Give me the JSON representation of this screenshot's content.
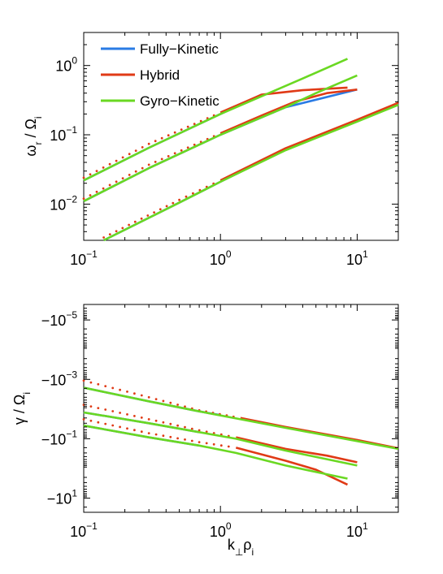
{
  "colors": {
    "fully_kinetic": "#2a7be4",
    "hybrid": "#e03a16",
    "gyro_kinetic": "#6ad822",
    "axes": "#000000",
    "background": "#ffffff"
  },
  "chart_data": [
    {
      "type": "line",
      "xscale": "log",
      "yscale": "log",
      "xlim": [
        0.1,
        20
      ],
      "ylim": [
        0.003,
        3
      ],
      "xticks": [
        0.1,
        1,
        10
      ],
      "xtick_labels": [
        {
          "base": "10",
          "exp": "−1"
        },
        {
          "base": "10",
          "exp": "0"
        },
        {
          "base": "10",
          "exp": "1"
        }
      ],
      "yticks": [
        0.01,
        0.1,
        1
      ],
      "ytick_labels": [
        {
          "base": "10",
          "exp": "−2"
        },
        {
          "base": "10",
          "exp": "−1"
        },
        {
          "base": "10",
          "exp": "0"
        }
      ],
      "ylabel": {
        "main": "ω",
        "sub": "r",
        "sep": " / ",
        "denom": "Ω",
        "denom_sub": "i"
      },
      "grid": false,
      "legend": {
        "placement": "top-left",
        "entries": [
          "Fully−Kinetic",
          "Hybrid",
          "Gyro−Kinetic"
        ]
      },
      "series": [
        {
          "name": "Fully−Kinetic",
          "style": "solid",
          "x": [
            0.1,
            0.3,
            1,
            2
          ],
          "y": [
            0.022,
            0.065,
            0.2,
            0.38
          ]
        },
        {
          "name": "Fully−Kinetic",
          "style": "solid",
          "x": [
            0.1,
            0.3,
            1,
            3,
            10
          ],
          "y": [
            0.011,
            0.033,
            0.1,
            0.25,
            0.45
          ]
        },
        {
          "name": "Fully−Kinetic",
          "style": "solid",
          "x": [
            0.14,
            0.5,
            1,
            3,
            10,
            20
          ],
          "y": [
            0.003,
            0.0105,
            0.021,
            0.062,
            0.16,
            0.28
          ]
        },
        {
          "name": "Hybrid",
          "style": "dotted",
          "x": [
            0.1,
            0.3,
            1
          ],
          "y": [
            0.024,
            0.074,
            0.21
          ]
        },
        {
          "name": "Hybrid",
          "style": "solid",
          "x": [
            1,
            2,
            4,
            8.5
          ],
          "y": [
            0.21,
            0.38,
            0.44,
            0.48
          ]
        },
        {
          "name": "Hybrid",
          "style": "dotted",
          "x": [
            0.1,
            0.3,
            1
          ],
          "y": [
            0.012,
            0.037,
            0.105
          ]
        },
        {
          "name": "Hybrid",
          "style": "solid",
          "x": [
            1,
            2,
            3.5,
            6,
            10
          ],
          "y": [
            0.105,
            0.19,
            0.3,
            0.4,
            0.45
          ]
        },
        {
          "name": "Hybrid",
          "style": "dotted",
          "x": [
            0.14,
            0.5,
            1
          ],
          "y": [
            0.0033,
            0.0115,
            0.022
          ]
        },
        {
          "name": "Hybrid",
          "style": "solid",
          "x": [
            1,
            3,
            10,
            20
          ],
          "y": [
            0.022,
            0.064,
            0.165,
            0.29
          ]
        },
        {
          "name": "Gyro−Kinetic",
          "style": "solid",
          "x": [
            0.1,
            0.3,
            1,
            2,
            4,
            8.5
          ],
          "y": [
            0.022,
            0.065,
            0.2,
            0.36,
            0.65,
            1.25
          ]
        },
        {
          "name": "Gyro−Kinetic",
          "style": "solid",
          "x": [
            0.1,
            0.3,
            1,
            3,
            5,
            10
          ],
          "y": [
            0.011,
            0.033,
            0.1,
            0.25,
            0.4,
            0.72
          ]
        },
        {
          "name": "Gyro−Kinetic",
          "style": "solid",
          "x": [
            0.14,
            0.5,
            1,
            3,
            10,
            20
          ],
          "y": [
            0.003,
            0.0105,
            0.021,
            0.06,
            0.155,
            0.27
          ]
        }
      ]
    },
    {
      "type": "line",
      "xscale": "log",
      "yscale": "log",
      "yaxis_sign": "negative",
      "xlim": [
        0.1,
        20
      ],
      "ylim": [
        3e-06,
        30
      ],
      "xticks": [
        0.1,
        1,
        10
      ],
      "xtick_labels": [
        {
          "base": "10",
          "exp": "−1"
        },
        {
          "base": "10",
          "exp": "0"
        },
        {
          "base": "10",
          "exp": "1"
        }
      ],
      "yticks": [
        1e-05,
        0.001,
        0.1,
        10
      ],
      "ytick_labels": [
        {
          "base": "−10",
          "exp": "−5"
        },
        {
          "base": "−10",
          "exp": "−3"
        },
        {
          "base": "−10",
          "exp": "−1"
        },
        {
          "base": "−10",
          "exp": "1"
        }
      ],
      "xlabel": {
        "main": "k",
        "sub": "⊥",
        "main2": "ρ",
        "sub2": "i"
      },
      "ylabel": {
        "main": "γ",
        "sep": " / ",
        "denom": "Ω",
        "denom_sub": "i"
      },
      "grid": false,
      "series": [
        {
          "name": "Fully−Kinetic",
          "style": "solid",
          "x": [
            0.1,
            0.3,
            0.7,
            1
          ],
          "y": [
            0.0019,
            0.0055,
            0.012,
            0.016
          ]
        },
        {
          "name": "Fully−Kinetic",
          "style": "solid",
          "x": [
            0.1,
            0.3,
            0.7
          ],
          "y": [
            0.013,
            0.03,
            0.06
          ]
        },
        {
          "name": "Fully−Kinetic",
          "style": "solid",
          "x": [
            0.1,
            0.3,
            0.7
          ],
          "y": [
            0.036,
            0.09,
            0.17
          ]
        },
        {
          "name": "Hybrid",
          "style": "dotted",
          "x": [
            0.1,
            0.3,
            0.7,
            1.4
          ],
          "y": [
            0.0011,
            0.004,
            0.011,
            0.02
          ]
        },
        {
          "name": "Hybrid",
          "style": "solid",
          "x": [
            1.4,
            3,
            10,
            20
          ],
          "y": [
            0.02,
            0.04,
            0.11,
            0.21
          ]
        },
        {
          "name": "Hybrid",
          "style": "dotted",
          "x": [
            0.1,
            0.3,
            0.7,
            1.3
          ],
          "y": [
            0.0072,
            0.022,
            0.052,
            0.09
          ]
        },
        {
          "name": "Hybrid",
          "style": "solid",
          "x": [
            1.3,
            3,
            6,
            10
          ],
          "y": [
            0.09,
            0.22,
            0.37,
            0.62
          ]
        },
        {
          "name": "Hybrid",
          "style": "dotted",
          "x": [
            0.1,
            0.3,
            0.7,
            1.3
          ],
          "y": [
            0.022,
            0.065,
            0.13,
            0.2
          ]
        },
        {
          "name": "Hybrid",
          "style": "solid",
          "x": [
            1.3,
            3,
            5,
            8.5
          ],
          "y": [
            0.2,
            0.55,
            1.1,
            3.5
          ]
        },
        {
          "name": "Gyro−Kinetic",
          "style": "solid",
          "x": [
            0.1,
            0.3,
            0.7,
            1.4,
            3,
            10,
            20
          ],
          "y": [
            0.0019,
            0.0055,
            0.012,
            0.022,
            0.043,
            0.12,
            0.22
          ]
        },
        {
          "name": "Gyro−Kinetic",
          "style": "solid",
          "x": [
            0.1,
            0.3,
            0.7,
            1.3,
            3,
            10
          ],
          "y": [
            0.013,
            0.03,
            0.06,
            0.1,
            0.25,
            0.8
          ]
        },
        {
          "name": "Gyro−Kinetic",
          "style": "solid",
          "x": [
            0.1,
            0.3,
            0.7,
            1.3,
            3,
            8.5
          ],
          "y": [
            0.036,
            0.09,
            0.17,
            0.3,
            0.8,
            2.2
          ]
        }
      ]
    }
  ]
}
